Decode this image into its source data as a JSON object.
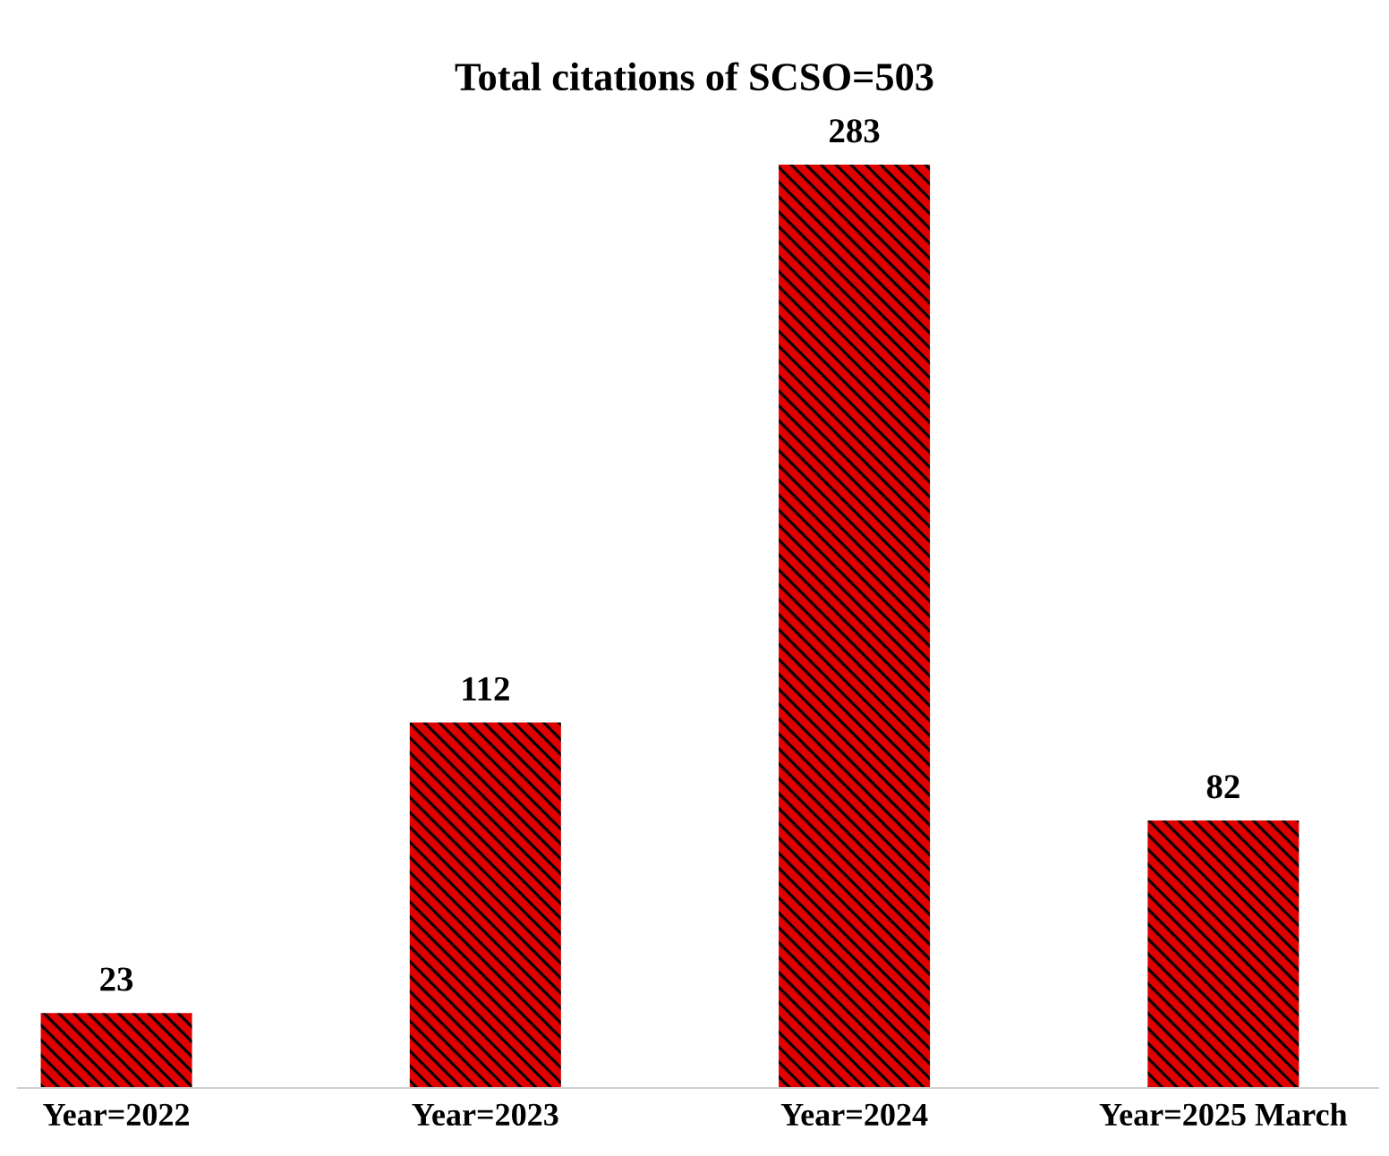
{
  "chart_data": {
    "type": "bar",
    "title": "Total citations of SCSO=503",
    "categories": [
      "Year=2022",
      "Year=2023",
      "Year=2024",
      "Year=2025 March"
    ],
    "values": [
      23,
      112,
      283,
      82
    ],
    "color": "#e00000",
    "data_labels": true,
    "grid": false,
    "legend": false
  }
}
